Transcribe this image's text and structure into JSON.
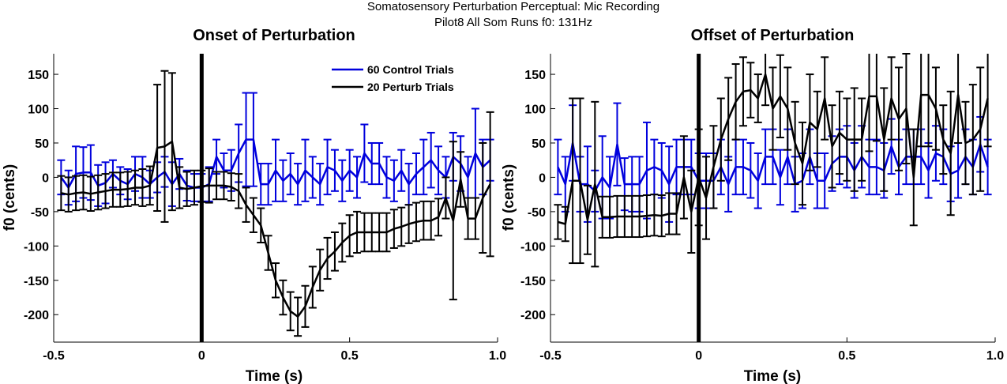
{
  "figure": {
    "title_line1": "Somatosensory Perturbation Perceptual: Mic Recording",
    "title_line2": "Pilot8 All Som Runs   f0: 131Hz"
  },
  "colors": {
    "control": "#0000dd",
    "perturb": "#000000"
  },
  "chart_data": [
    {
      "type": "line",
      "title": "Onset of Perturbation",
      "xlabel": "Time (s)",
      "ylabel": "f0 (cents)",
      "xlim": [
        -0.5,
        1.0
      ],
      "ylim": [
        -240,
        180
      ],
      "xticks": [
        -0.5,
        0,
        0.5,
        1.0
      ],
      "xtick_labels": [
        "-0.5",
        "0",
        "0.5",
        "1.0"
      ],
      "yticks": [
        150,
        100,
        50,
        0,
        -50,
        -100,
        -150,
        -200
      ],
      "ytick_labels": [
        "150",
        "100",
        "50",
        "0",
        "-50",
        "-100",
        "-150",
        "-200"
      ],
      "vline_x": 0,
      "legend": {
        "position": "top-right"
      },
      "series": [
        {
          "name": "60 Control Trials",
          "color": "#0000dd",
          "x": [
            -0.475,
            -0.45,
            -0.425,
            -0.4,
            -0.375,
            -0.35,
            -0.325,
            -0.3,
            -0.275,
            -0.25,
            -0.225,
            -0.2,
            -0.175,
            -0.15,
            -0.125,
            -0.1,
            -0.075,
            -0.05,
            -0.025,
            0,
            0.025,
            0.05,
            0.075,
            0.1,
            0.125,
            0.15,
            0.175,
            0.2,
            0.225,
            0.25,
            0.275,
            0.3,
            0.325,
            0.35,
            0.375,
            0.4,
            0.425,
            0.45,
            0.475,
            0.5,
            0.525,
            0.55,
            0.575,
            0.6,
            0.625,
            0.65,
            0.675,
            0.7,
            0.725,
            0.75,
            0.775,
            0.8,
            0.825,
            0.85,
            0.875,
            0.9,
            0.925,
            0.95,
            0.975
          ],
          "y": [
            0,
            -15,
            5,
            7,
            7,
            -12,
            -8,
            5,
            -5,
            -10,
            5,
            0,
            -10,
            0,
            8,
            -10,
            5,
            -12,
            -15,
            -15,
            -10,
            30,
            10,
            10,
            35,
            55,
            55,
            -10,
            -10,
            10,
            -5,
            5,
            -10,
            10,
            0,
            -10,
            15,
            10,
            -5,
            10,
            0,
            35,
            20,
            20,
            0,
            -5,
            10,
            -10,
            5,
            15,
            25,
            10,
            0,
            30,
            20,
            0,
            35,
            15,
            25
          ],
          "err": [
            25,
            25,
            40,
            37,
            40,
            30,
            30,
            20,
            20,
            22,
            25,
            30,
            20,
            22,
            22,
            32,
            22,
            22,
            20,
            20,
            25,
            25,
            25,
            30,
            42,
            68,
            68,
            30,
            30,
            45,
            30,
            30,
            30,
            45,
            30,
            30,
            40,
            30,
            30,
            30,
            30,
            42,
            30,
            30,
            30,
            30,
            30,
            30,
            30,
            40,
            40,
            35,
            30,
            35,
            40,
            30,
            65,
            40,
            30
          ]
        },
        {
          "name": "20 Perturb Trials",
          "color": "#000000",
          "x": [
            -0.475,
            -0.45,
            -0.425,
            -0.4,
            -0.375,
            -0.35,
            -0.325,
            -0.3,
            -0.275,
            -0.25,
            -0.225,
            -0.2,
            -0.175,
            -0.15,
            -0.125,
            -0.1,
            -0.075,
            -0.05,
            -0.025,
            0,
            0.025,
            0.05,
            0.075,
            0.1,
            0.125,
            0.15,
            0.175,
            0.2,
            0.225,
            0.25,
            0.275,
            0.3,
            0.325,
            0.35,
            0.375,
            0.4,
            0.425,
            0.45,
            0.475,
            0.5,
            0.525,
            0.55,
            0.575,
            0.6,
            0.625,
            0.65,
            0.675,
            0.7,
            0.725,
            0.75,
            0.775,
            0.8,
            0.825,
            0.85,
            0.875,
            0.9,
            0.925,
            0.95,
            0.975
          ],
          "y": [
            -23,
            -25,
            -23,
            -22,
            -24,
            -22,
            -20,
            -18,
            -18,
            -17,
            -15,
            -15,
            -12,
            43,
            45,
            52,
            -15,
            -17,
            -15,
            -13,
            -12,
            -12,
            -12,
            -14,
            -20,
            -40,
            -55,
            -70,
            -110,
            -150,
            -175,
            -195,
            -203,
            -188,
            -160,
            -135,
            -118,
            -108,
            -95,
            -85,
            -80,
            -80,
            -80,
            -80,
            -80,
            -75,
            -72,
            -68,
            -65,
            -63,
            -63,
            -58,
            -30,
            -63,
            -3,
            -60,
            -60,
            -30,
            -10
          ],
          "err": [
            25,
            25,
            25,
            25,
            25,
            25,
            25,
            25,
            25,
            25,
            25,
            27,
            28,
            92,
            110,
            100,
            30,
            25,
            25,
            23,
            25,
            20,
            20,
            20,
            25,
            25,
            25,
            25,
            25,
            25,
            25,
            28,
            28,
            30,
            30,
            30,
            30,
            28,
            28,
            30,
            30,
            28,
            28,
            28,
            28,
            28,
            28,
            28,
            28,
            28,
            28,
            27,
            30,
            115,
            40,
            30,
            30,
            80,
            105
          ]
        }
      ]
    },
    {
      "type": "line",
      "title": "Offset of Perturbation",
      "xlabel": "Time (s)",
      "ylabel": "f0 (cents)",
      "xlim": [
        -0.5,
        1.0
      ],
      "ylim": [
        -240,
        180
      ],
      "xticks": [
        -0.5,
        0,
        0.5,
        1.0
      ],
      "xtick_labels": [
        "-0.5",
        "0",
        "0.5",
        "1.0"
      ],
      "yticks": [
        150,
        100,
        50,
        0,
        -50,
        -100,
        -150,
        -200
      ],
      "ytick_labels": [
        "150",
        "100",
        "50",
        "0",
        "-50",
        "-100",
        "-150",
        "-200"
      ],
      "vline_x": 0,
      "series": [
        {
          "name": "60 Control Trials",
          "color": "#0000dd",
          "x": [
            -0.475,
            -0.45,
            -0.425,
            -0.4,
            -0.375,
            -0.35,
            -0.325,
            -0.3,
            -0.275,
            -0.25,
            -0.225,
            -0.2,
            -0.175,
            -0.15,
            -0.125,
            -0.1,
            -0.075,
            -0.05,
            -0.025,
            0,
            0.025,
            0.05,
            0.075,
            0.1,
            0.125,
            0.15,
            0.175,
            0.2,
            0.225,
            0.25,
            0.275,
            0.3,
            0.325,
            0.35,
            0.375,
            0.4,
            0.425,
            0.45,
            0.475,
            0.5,
            0.525,
            0.55,
            0.575,
            0.6,
            0.625,
            0.65,
            0.675,
            0.7,
            0.725,
            0.75,
            0.775,
            0.8,
            0.825,
            0.85,
            0.875,
            0.9,
            0.925,
            0.95,
            0.975
          ],
          "y": [
            15,
            -10,
            50,
            -10,
            -10,
            -20,
            0,
            -15,
            48,
            -10,
            -10,
            -10,
            10,
            15,
            10,
            -10,
            15,
            15,
            15,
            -5,
            -5,
            -5,
            15,
            -10,
            15,
            15,
            10,
            -5,
            30,
            30,
            0,
            30,
            -10,
            -5,
            30,
            -5,
            -5,
            20,
            30,
            30,
            10,
            30,
            15,
            15,
            10,
            45,
            15,
            30,
            30,
            30,
            10,
            35,
            30,
            5,
            10,
            30,
            15,
            48,
            15
          ],
          "err": [
            40,
            40,
            55,
            40,
            55,
            30,
            60,
            45,
            60,
            38,
            40,
            40,
            70,
            40,
            40,
            55,
            40,
            40,
            40,
            40,
            40,
            40,
            40,
            40,
            40,
            40,
            40,
            40,
            40,
            40,
            40,
            40,
            40,
            40,
            40,
            40,
            40,
            40,
            40,
            45,
            40,
            45,
            40,
            40,
            40,
            40,
            40,
            40,
            40,
            40,
            40,
            40,
            40,
            40,
            40,
            40,
            40,
            40,
            40
          ]
        },
        {
          "name": "20 Perturb Trials",
          "color": "#000000",
          "x": [
            -0.475,
            -0.45,
            -0.425,
            -0.4,
            -0.375,
            -0.35,
            -0.325,
            -0.3,
            -0.275,
            -0.25,
            -0.225,
            -0.2,
            -0.175,
            -0.15,
            -0.125,
            -0.1,
            -0.075,
            -0.05,
            -0.025,
            0,
            0.025,
            0.05,
            0.075,
            0.1,
            0.125,
            0.15,
            0.175,
            0.2,
            0.225,
            0.25,
            0.275,
            0.3,
            0.325,
            0.35,
            0.375,
            0.4,
            0.425,
            0.45,
            0.475,
            0.5,
            0.525,
            0.55,
            0.575,
            0.6,
            0.625,
            0.65,
            0.675,
            0.7,
            0.725,
            0.75,
            0.775,
            0.8,
            0.825,
            0.85,
            0.875,
            0.9,
            0.925,
            0.95,
            0.975
          ],
          "y": [
            -65,
            -68,
            -5,
            -5,
            -62,
            -10,
            -58,
            -58,
            -57,
            -57,
            -57,
            -57,
            -56,
            -55,
            -56,
            -53,
            -53,
            0,
            -50,
            0,
            -30,
            15,
            55,
            85,
            110,
            125,
            127,
            115,
            150,
            100,
            118,
            100,
            50,
            20,
            80,
            70,
            115,
            45,
            65,
            55,
            55,
            55,
            118,
            118,
            55,
            115,
            85,
            100,
            0,
            120,
            120,
            100,
            55,
            35,
            120,
            50,
            55,
            70,
            115
          ],
          "err": [
            25,
            25,
            120,
            120,
            50,
            120,
            30,
            30,
            30,
            30,
            30,
            30,
            30,
            30,
            30,
            30,
            30,
            60,
            60,
            70,
            60,
            60,
            60,
            60,
            55,
            50,
            40,
            35,
            45,
            60,
            60,
            60,
            60,
            60,
            70,
            55,
            60,
            60,
            60,
            60,
            75,
            60,
            80,
            65,
            75,
            60,
            75,
            80,
            70,
            75,
            75,
            60,
            50,
            90,
            70,
            60,
            80,
            90,
            70
          ]
        }
      ]
    }
  ]
}
